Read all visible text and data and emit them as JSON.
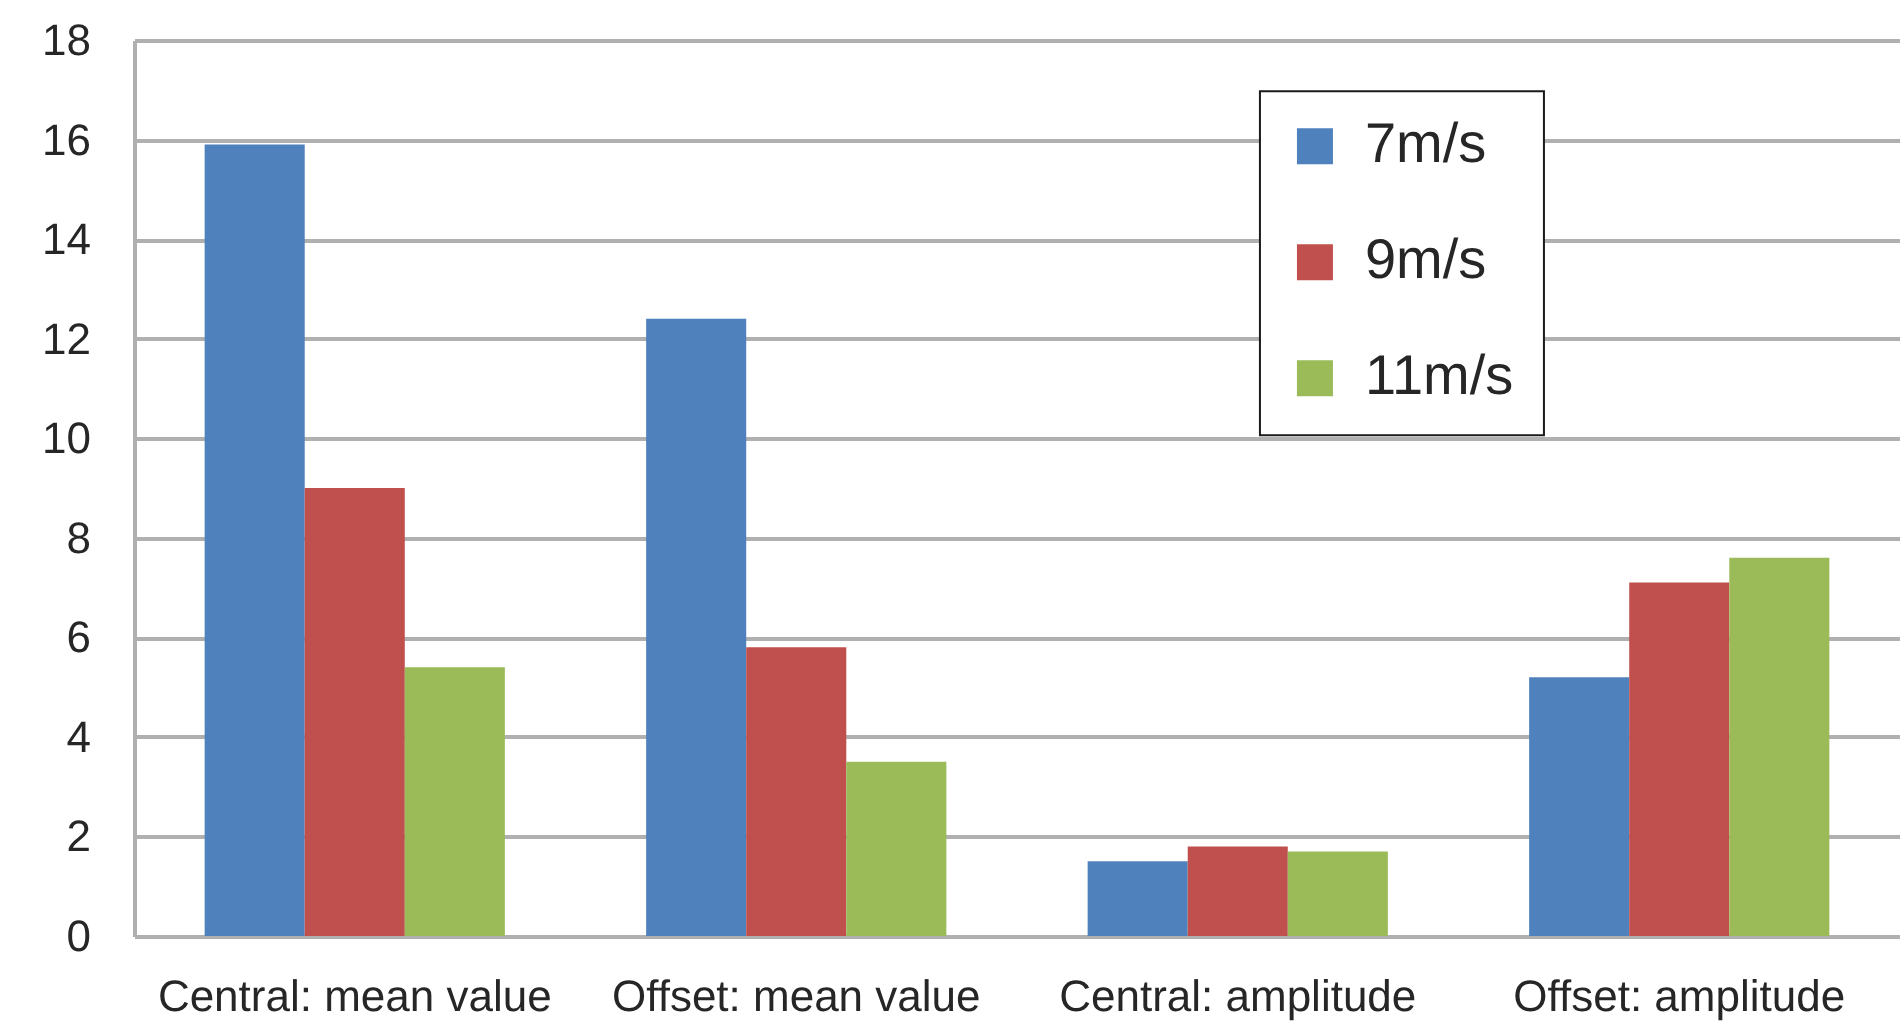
{
  "chart_data": {
    "type": "bar",
    "categories": [
      "Central: mean value",
      "Offset: mean value",
      "Central: amplitude",
      "Offset: amplitude"
    ],
    "series": [
      {
        "name": "7m/s",
        "color": "#4f81bd",
        "values": [
          15.9,
          12.4,
          1.5,
          5.2
        ]
      },
      {
        "name": "9m/s",
        "color": "#c0504d",
        "values": [
          9.0,
          5.8,
          1.8,
          7.1
        ]
      },
      {
        "name": "11m/s",
        "color": "#9bbb59",
        "values": [
          5.4,
          3.5,
          1.7,
          7.6
        ]
      }
    ],
    "ylim": [
      0,
      18
    ],
    "yticks": [
      0,
      2,
      4,
      6,
      8,
      10,
      12,
      14,
      16,
      18
    ],
    "grid": "y",
    "legend": "top right"
  }
}
